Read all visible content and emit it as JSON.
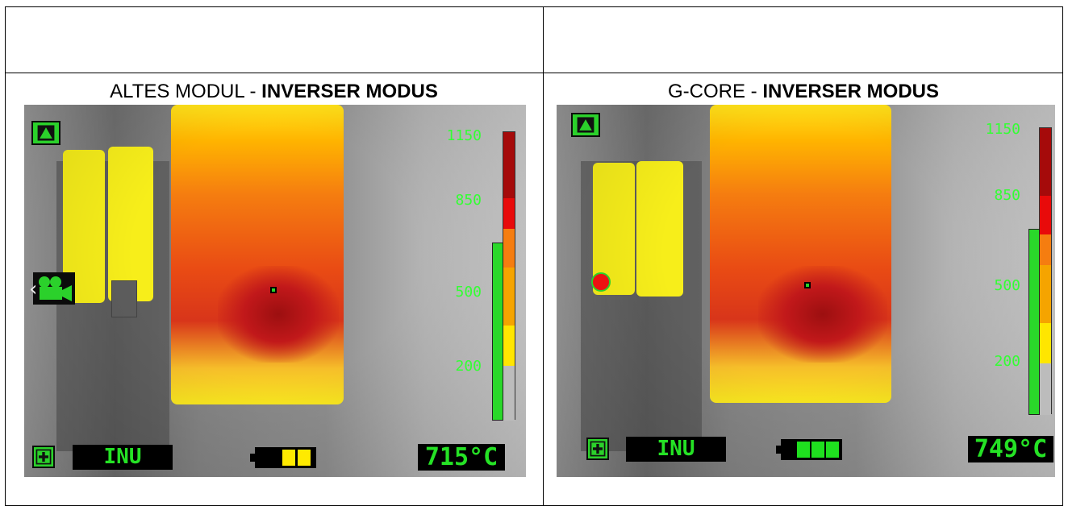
{
  "panels": [
    {
      "caption_prefix": "ALTES MODUL - ",
      "caption_bold": "INVERSER MODUS",
      "mode_label": "INU",
      "temperature": "715°C",
      "battery_cells": 2,
      "battery_color": "#ffea00",
      "scale_labels": [
        "1150",
        "850",
        "500",
        "200"
      ],
      "scale_level_fraction": 0.61,
      "left_indicator": "camera-icon"
    },
    {
      "caption_prefix": "G-CORE - ",
      "caption_bold": "INVERSER MODUS",
      "mode_label": "INU",
      "temperature": "749°C",
      "battery_cells": 3,
      "battery_color": "#1fe01f",
      "scale_labels": [
        "1150",
        "850",
        "500",
        "200"
      ],
      "scale_level_fraction": 0.64,
      "left_indicator": "record-dot-icon"
    }
  ],
  "colors": {
    "green": "#25e225",
    "scale_red_dark": "#a50a0a",
    "scale_red": "#e80a0a",
    "scale_orange": "#f57d10",
    "scale_amber": "#f5a400",
    "scale_yellow": "#ffe600",
    "scale_gray": "#bcbcbc"
  }
}
